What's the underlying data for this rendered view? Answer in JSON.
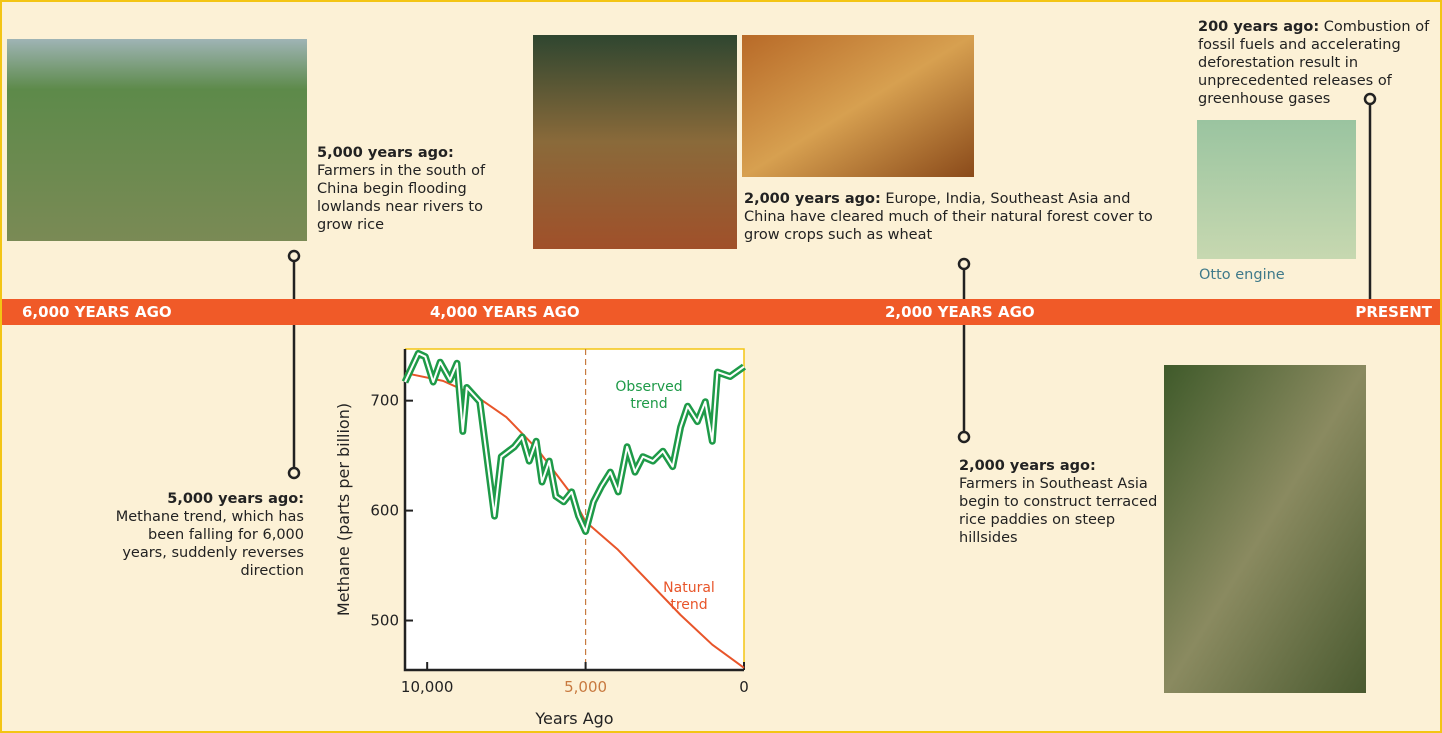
{
  "timeline": {
    "band_labels": [
      "6,000 YEARS AGO",
      "4,000 YEARS AGO",
      "2,000 YEARS AGO",
      "PRESENT"
    ],
    "events": [
      {
        "heading": "5,000 years ago:",
        "text": "Farmers in the south of China begin flooding lowlands near rivers to grow rice"
      },
      {
        "heading": "2,000 years ago:",
        "text": "Europe, India, Southeast Asia and China have cleared much of their natural forest cover to grow crops such as wheat"
      },
      {
        "heading": "200 years ago:",
        "text": "Combustion of fossil fuels and accelerating deforestation result in unprecedented releases of greenhouse gases"
      },
      {
        "heading": "5,000 years ago:",
        "text": "Methane trend, which has been falling for 6,000 years, suddenly reverses direction"
      },
      {
        "heading": "2,000 years ago:",
        "text": "Farmers in Southeast Asia begin to construct terraced rice paddies on steep hillsides"
      }
    ],
    "image_caption": "Otto engine"
  },
  "chart_data": {
    "type": "line",
    "x_label": "Years Ago",
    "y_label": "Methane (parts per billion)",
    "xlim": [
      10700,
      0
    ],
    "ylim": [
      455,
      747
    ],
    "xticks": [
      {
        "value": 10000,
        "label": "10,000"
      },
      {
        "value": 5000,
        "label": "5,000"
      },
      0
    ],
    "yticks": [
      500,
      600,
      700
    ],
    "vline": 5000,
    "series": [
      {
        "name": "Observed trend",
        "color": "#1e9a48",
        "x": [
          10700,
          10280,
          10060,
          9810,
          9590,
          9280,
          9060,
          8875,
          8750,
          8340,
          7875,
          7660,
          7250,
          7000,
          6780,
          6560,
          6375,
          6150,
          5940,
          5690,
          5440,
          5220,
          5000,
          4750,
          4500,
          4220,
          3970,
          3690,
          3440,
          3190,
          2875,
          2560,
          2250,
          2000,
          1780,
          1470,
          1220,
          1000,
          840,
          440,
          0
        ],
        "values": [
          717,
          743,
          740,
          717,
          735,
          719,
          734,
          672,
          712,
          699,
          595,
          649,
          658,
          667,
          645,
          663,
          626,
          645,
          613,
          608,
          617,
          595,
          581,
          608,
          622,
          635,
          617,
          658,
          635,
          649,
          645,
          654,
          640,
          676,
          695,
          681,
          699,
          663,
          726,
          722,
          731
        ]
      },
      {
        "name": "Natural trend",
        "color": "#e8552a",
        "x": [
          10700,
          10500,
          9500,
          8500,
          7500,
          6500,
          5500,
          5000,
          4000,
          3000,
          2000,
          1000,
          0
        ],
        "values": [
          725,
          724,
          718,
          705,
          685,
          655,
          617,
          590,
          565,
          535,
          505,
          478,
          457
        ]
      }
    ]
  }
}
